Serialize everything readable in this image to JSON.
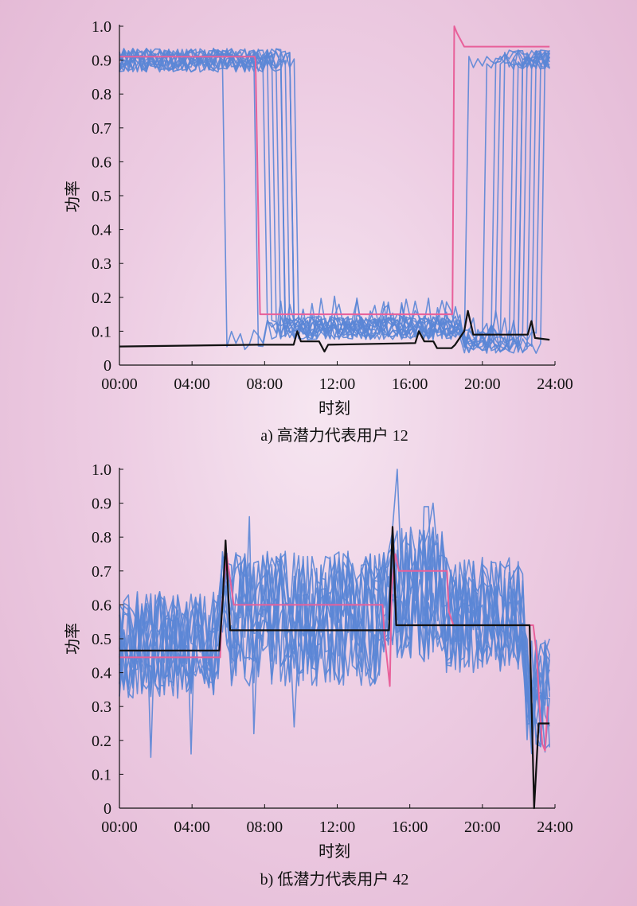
{
  "chart_data": [
    {
      "type": "line",
      "caption": "a) 高潜力代表用户 12",
      "xlabel": "时刻",
      "ylabel": "功率",
      "x_ticks": [
        "00:00",
        "04:00",
        "08:00",
        "12:00",
        "16:00",
        "20:00",
        "24:00"
      ],
      "y_ticks": [
        "0",
        "0.1",
        "0.2",
        "0.3",
        "0.4",
        "0.5",
        "0.6",
        "0.7",
        "0.8",
        "0.9",
        "1.0"
      ],
      "xlim": [
        0,
        24
      ],
      "ylim": [
        0,
        1.0
      ],
      "grid": false,
      "background_series": {
        "color": "#5b86d6",
        "count": 14,
        "low_level": 0.07,
        "mid_level": 0.11,
        "high_level": 0.9,
        "morning_drop_hours": [
          5.7,
          7.6,
          7.9,
          8.3,
          8.5,
          8.7,
          8.9,
          9.0,
          9.1,
          9.2,
          9.4,
          9.5,
          9.6,
          9.7
        ],
        "evening_rise_hours": [
          19.2,
          20.2,
          20.6,
          20.9,
          21.2,
          21.5,
          21.8,
          22.0,
          22.2,
          22.4,
          22.6,
          22.8,
          23.0,
          23.3
        ],
        "description_free": true
      },
      "series": [
        {
          "color": "#e8609a",
          "x": [
            0,
            7.45,
            7.5,
            7.75,
            18.35,
            18.45,
            18.6,
            19.0,
            23.7
          ],
          "y": [
            0.91,
            0.91,
            0.9,
            0.15,
            0.15,
            1.0,
            0.98,
            0.94,
            0.94
          ]
        },
        {
          "color": "#111111",
          "x": [
            0,
            7.6,
            9.6,
            9.8,
            10.0,
            11.0,
            11.3,
            11.5,
            16.3,
            16.5,
            16.8,
            17.3,
            17.5,
            18.3,
            18.5,
            19.0,
            19.2,
            19.5,
            22.5,
            22.7,
            22.9,
            23.7
          ],
          "y": [
            0.055,
            0.06,
            0.06,
            0.1,
            0.07,
            0.07,
            0.04,
            0.06,
            0.065,
            0.1,
            0.07,
            0.07,
            0.05,
            0.05,
            0.06,
            0.1,
            0.16,
            0.09,
            0.09,
            0.13,
            0.08,
            0.075
          ]
        }
      ]
    },
    {
      "type": "line",
      "caption": "b) 低潜力代表用户 42",
      "xlabel": "时刻",
      "ylabel": "功率",
      "x_ticks": [
        "00:00",
        "04:00",
        "08:00",
        "12:00",
        "16:00",
        "20:00",
        "24:00"
      ],
      "y_ticks": [
        "0",
        "0.1",
        "0.2",
        "0.3",
        "0.4",
        "0.5",
        "0.6",
        "0.7",
        "0.8",
        "0.9",
        "1.0"
      ],
      "xlim": [
        0,
        24
      ],
      "ylim": [
        0,
        1.0
      ],
      "grid": false,
      "background_series": {
        "color": "#5b86d6",
        "count": 14,
        "segments": [
          {
            "from": 0,
            "to": 5.6,
            "mean": 0.48,
            "spread": 0.16
          },
          {
            "from": 5.6,
            "to": 6.0,
            "mean": 0.62,
            "spread": 0.14
          },
          {
            "from": 6.0,
            "to": 14.7,
            "mean": 0.56,
            "spread": 0.2
          },
          {
            "from": 14.7,
            "to": 15.3,
            "mean": 0.65,
            "spread": 0.2
          },
          {
            "from": 15.3,
            "to": 18.0,
            "mean": 0.63,
            "spread": 0.2
          },
          {
            "from": 18.0,
            "to": 22.4,
            "mean": 0.57,
            "spread": 0.17
          },
          {
            "from": 22.4,
            "to": 23.7,
            "mean": 0.33,
            "spread": 0.17
          }
        ],
        "dips": [
          [
            1.7,
            0.15
          ],
          [
            4.0,
            0.16
          ],
          [
            7.5,
            0.22
          ],
          [
            9.7,
            0.24
          ],
          [
            22.7,
            0.19
          ]
        ],
        "peaks": [
          [
            7.2,
            0.86
          ],
          [
            15.4,
            1.0
          ],
          [
            16.9,
            0.89
          ],
          [
            17.3,
            0.9
          ]
        ]
      },
      "series": [
        {
          "color": "#e8609a",
          "x": [
            0,
            5.55,
            5.65,
            5.9,
            6.3,
            14.5,
            14.6,
            14.9,
            15.0,
            15.2,
            15.4,
            18.05,
            18.15,
            18.4,
            22.8,
            23.0,
            23.15,
            23.3,
            23.45,
            23.6
          ],
          "y": [
            0.445,
            0.445,
            0.6,
            0.75,
            0.6,
            0.6,
            0.51,
            0.36,
            0.65,
            0.75,
            0.7,
            0.7,
            0.58,
            0.54,
            0.54,
            0.45,
            0.3,
            0.19,
            0.17,
            0.3
          ]
        },
        {
          "color": "#111111",
          "x": [
            0,
            5.5,
            5.7,
            5.85,
            6.1,
            14.6,
            14.85,
            15.05,
            15.25,
            22.6,
            22.85,
            23.1,
            23.7
          ],
          "y": [
            0.465,
            0.465,
            0.62,
            0.79,
            0.525,
            0.525,
            0.525,
            0.83,
            0.54,
            0.54,
            0.0,
            0.25,
            0.25
          ]
        }
      ]
    }
  ]
}
